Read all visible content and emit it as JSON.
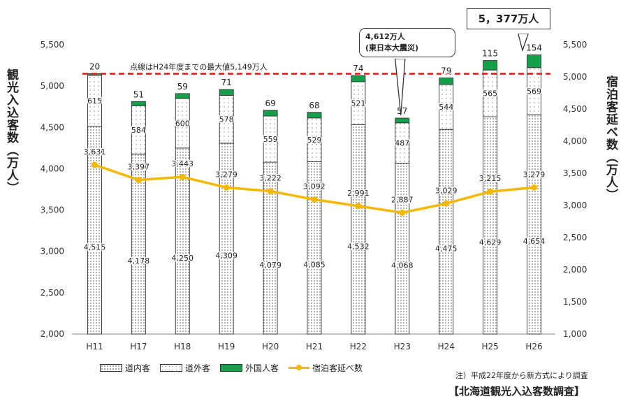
{
  "chart_data": {
    "type": "bar",
    "stacked": true,
    "categories": [
      "H11",
      "H17",
      "H18",
      "H19",
      "H20",
      "H21",
      "H22",
      "H23",
      "H24",
      "H25",
      "H26"
    ],
    "series": [
      {
        "name": "道内客",
        "type": "bar",
        "values": [
          4515,
          4178,
          4250,
          4309,
          4079,
          4085,
          4532,
          4068,
          4475,
          4629,
          4654
        ],
        "pattern": "dotted"
      },
      {
        "name": "道外客",
        "type": "bar",
        "values": [
          615,
          584,
          600,
          578,
          559,
          529,
          521,
          487,
          544,
          565,
          569
        ],
        "pattern": "sparse-dotted"
      },
      {
        "name": "外国人客",
        "type": "bar",
        "values": [
          20,
          51,
          59,
          71,
          69,
          68,
          74,
          57,
          79,
          115,
          154
        ],
        "color": "#12a04a"
      },
      {
        "name": "宿泊客延べ数",
        "type": "line",
        "axis": "right",
        "values": [
          3631,
          3397,
          3443,
          3279,
          3222,
          3092,
          2991,
          2887,
          3029,
          3215,
          3279
        ],
        "color": "#f5b800"
      }
    ],
    "value_labels": {
      "bottom": [
        "4,515",
        "4,178",
        "4,250",
        "4,309",
        "4,079",
        "4,085",
        "4,532",
        "4,068",
        "4,475",
        "4,629",
        "4,654"
      ],
      "middle": [
        "615",
        "584",
        "600",
        "578",
        "559",
        "529",
        "521",
        "487",
        "544",
        "565",
        "569"
      ],
      "top": [
        "20",
        "51",
        "59",
        "71",
        "69",
        "68",
        "74",
        "57",
        "79",
        "115",
        "154"
      ],
      "line": [
        "3,631",
        "3,397",
        "3,443",
        "3,279",
        "3,222",
        "3,092",
        "2,991",
        "2,887",
        "3,029",
        "3,215",
        "3,279"
      ]
    },
    "ylim_left": [
      2000,
      5500
    ],
    "ylim_right": [
      1000,
      5500
    ],
    "yticks_left": [
      "2,000",
      "2,500",
      "3,000",
      "3,500",
      "4,000",
      "4,500",
      "5,000",
      "5,500"
    ],
    "yticks_right": [
      "1,000",
      "1,500",
      "2,000",
      "2,500",
      "3,000",
      "3,500",
      "4,000",
      "4,500",
      "5,000",
      "5,500"
    ],
    "reference_line": {
      "value": 5149,
      "label": "点線はH24年度までの最大値5,149万人",
      "color": "#e02020",
      "style": "dashed"
    },
    "ylabel_left": "観光入込客数（万人）",
    "ylabel_right": "宿泊客延べ数（万人）",
    "grid": false,
    "legend_position": "bottom"
  },
  "annotations": {
    "peak": "5，377万人",
    "quake_line1": "4,612万人",
    "quake_line2": "(東日本大震災)"
  },
  "legend": [
    "道内客",
    "道外客",
    "外国人客",
    "宿泊客延べ数"
  ],
  "note": "注）平成22年度から新方式により調査",
  "source": "【北海道観光入込客数調査】"
}
